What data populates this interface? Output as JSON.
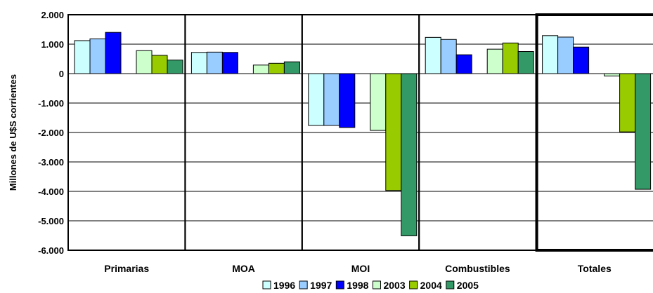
{
  "chart_data": {
    "type": "bar",
    "ylabel": "Millones de U$S corrientes",
    "ylim": [
      -6000,
      2000
    ],
    "ytick_step": 1000,
    "yticks": [
      "2.000",
      "1.000",
      "0",
      "-1.000",
      "-2.000",
      "-3.000",
      "-4.000",
      "-5.000",
      "-6.000"
    ],
    "grid": true,
    "legend_position": "bottom",
    "categories": [
      "Primarias",
      "MOA",
      "MOI",
      "Combustibles",
      "Totales"
    ],
    "highlighted_category": "Totales",
    "series": [
      {
        "name": "1996",
        "color": "#ccffff",
        "values": [
          1120,
          720,
          -1760,
          1230,
          1290
        ]
      },
      {
        "name": "1997",
        "color": "#99ccff",
        "values": [
          1180,
          730,
          -1760,
          1160,
          1240
        ]
      },
      {
        "name": "1998",
        "color": "#0000ff",
        "values": [
          1400,
          720,
          -1830,
          640,
          900
        ]
      },
      {
        "name": "2003",
        "color": "#ccffcc",
        "values": [
          780,
          290,
          -1930,
          830,
          -80
        ]
      },
      {
        "name": "2004",
        "color": "#99cc00",
        "values": [
          620,
          350,
          -3970,
          1040,
          -1980
        ]
      },
      {
        "name": "2005",
        "color": "#339966",
        "values": [
          460,
          400,
          -5510,
          750,
          -3930
        ]
      }
    ]
  }
}
